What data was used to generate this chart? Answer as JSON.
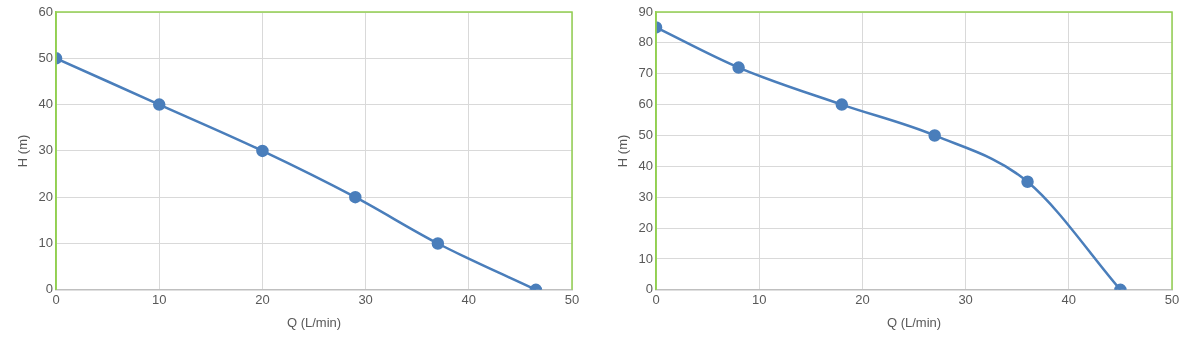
{
  "chart_data": [
    {
      "type": "line",
      "xlabel": "Q (L/min)",
      "ylabel": "H (m)",
      "xlim": [
        0,
        50
      ],
      "xticks": [
        0,
        10,
        20,
        30,
        40,
        50
      ],
      "ylim": [
        0,
        60
      ],
      "yticks": [
        0,
        10,
        20,
        30,
        40,
        50,
        60
      ],
      "grid": true,
      "legend": false,
      "marker": "circle",
      "line_style": "solid",
      "series": [
        {
          "color": "#4a7ebb",
          "x": [
            0,
            10,
            20,
            29,
            37,
            46.5
          ],
          "values": [
            50,
            40,
            30,
            20,
            10,
            0
          ]
        }
      ]
    },
    {
      "type": "line",
      "xlabel": "Q (L/min)",
      "ylabel": "H (m)",
      "xlim": [
        0,
        50
      ],
      "xticks": [
        0,
        10,
        20,
        30,
        40,
        50
      ],
      "ylim": [
        0,
        90
      ],
      "yticks": [
        0,
        10,
        20,
        30,
        40,
        50,
        60,
        70,
        80,
        90
      ],
      "grid": true,
      "legend": false,
      "marker": "circle",
      "line_style": "solid",
      "series": [
        {
          "color": "#4a7ebb",
          "x": [
            0,
            8,
            18,
            27,
            36,
            45
          ],
          "values": [
            85,
            72,
            60,
            50,
            35,
            0
          ]
        }
      ]
    }
  ]
}
